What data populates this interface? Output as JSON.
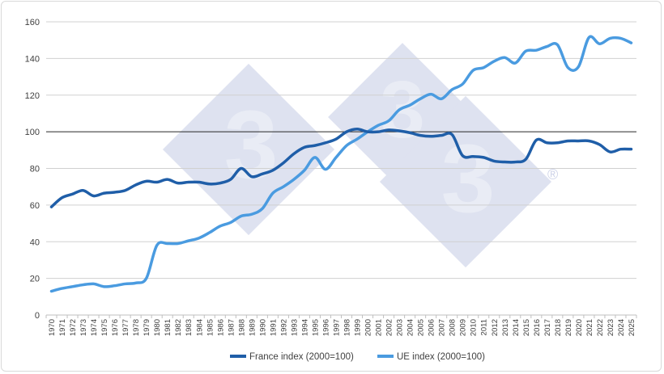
{
  "chart_data": {
    "type": "line",
    "title": "",
    "xlabel": "",
    "ylabel": "",
    "ylim": [
      0,
      160
    ],
    "yticks": [
      0,
      20,
      40,
      60,
      80,
      100,
      120,
      140,
      160
    ],
    "reference_line": 100,
    "grid": true,
    "legend_position": "bottom",
    "x": [
      "1970",
      "1971",
      "1972",
      "1973",
      "1974",
      "1975",
      "1976",
      "1977",
      "1978",
      "1979",
      "1980",
      "1981",
      "1982",
      "1983",
      "1984",
      "1985",
      "1986",
      "1987",
      "1988",
      "1989",
      "1990",
      "1991",
      "1992",
      "1993",
      "1994",
      "1995",
      "1996",
      "1997",
      "1998",
      "1999",
      "2000",
      "2001",
      "2002",
      "2003",
      "2004",
      "2005",
      "2006",
      "2007",
      "2008",
      "2009",
      "2010",
      "2011",
      "2012",
      "2013",
      "2014",
      "2015",
      "2016",
      "2017",
      "2018",
      "2019",
      "2020",
      "2021",
      "2022",
      "2023",
      "2024",
      "2025"
    ],
    "series": [
      {
        "name": "France index (2000=100)",
        "color": "#1f5ea8",
        "values": [
          59,
          64,
          66,
          68,
          65,
          66.5,
          67,
          68,
          71,
          73,
          72.5,
          74,
          72,
          72.5,
          72.5,
          71.5,
          72,
          74,
          80,
          75.5,
          77,
          79,
          83,
          88,
          91.5,
          92.5,
          94,
          96,
          100,
          101.5,
          100,
          100,
          101,
          100.5,
          99.5,
          98,
          97.5,
          98,
          98.5,
          87,
          86.5,
          86,
          84,
          83.5,
          83.5,
          85,
          95.5,
          94,
          94,
          95,
          95,
          95,
          93,
          89,
          90.5,
          90.5
        ]
      },
      {
        "name": "UE index (2000=100)",
        "color": "#4a9be0",
        "values": [
          13,
          14.5,
          15.5,
          16.5,
          17,
          15.5,
          16,
          17,
          17.5,
          20,
          38,
          39,
          39,
          40.5,
          42,
          45,
          48.5,
          50.5,
          54,
          55,
          58,
          66.5,
          70,
          74,
          79,
          86,
          79.5,
          86,
          92.5,
          96,
          100,
          103.5,
          106,
          112,
          114.5,
          118,
          120.5,
          118,
          123,
          126,
          133.5,
          135,
          138.5,
          140.5,
          137.5,
          144,
          144.5,
          146.5,
          147.5,
          135,
          135.5,
          151.5,
          148,
          151,
          151,
          148.5
        ]
      }
    ]
  },
  "watermark": {
    "text": "333",
    "registered_mark": "®"
  }
}
